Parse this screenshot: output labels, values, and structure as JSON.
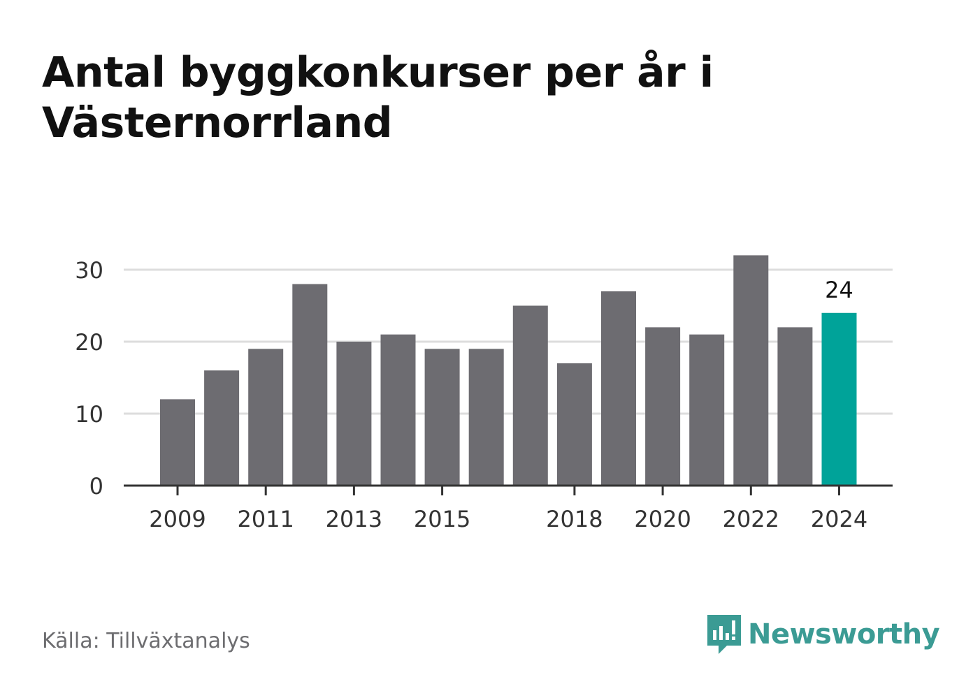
{
  "title": "Antal byggkonkurser per år i Västernorrland",
  "source": "Källa: Tillväxtanalys",
  "brand": {
    "name": "Newsworthy",
    "logo_icon": "newsworthy-logo-icon",
    "color": "#3b9b94"
  },
  "colors": {
    "bar": "#6d6c71",
    "highlight": "#00a399",
    "grid": "#dddddd",
    "axis": "#333333",
    "tick_text": "#333333",
    "label_text": "#111111"
  },
  "chart_data": {
    "type": "bar",
    "categories": [
      "2009",
      "2010",
      "2011",
      "2012",
      "2013",
      "2014",
      "2015",
      "2016",
      "2017",
      "2018",
      "2019",
      "2020",
      "2021",
      "2022",
      "2023",
      "2024"
    ],
    "values": [
      12,
      16,
      19,
      28,
      20,
      21,
      19,
      19,
      25,
      17,
      27,
      22,
      21,
      32,
      22,
      24
    ],
    "highlight_index": 15,
    "data_labels": [
      {
        "category": "2024",
        "text": "24"
      }
    ],
    "x_tick_labels": [
      {
        "x": 2009,
        "label": "2009"
      },
      {
        "x": 2011,
        "label": "2011"
      },
      {
        "x": 2013,
        "label": "2013"
      },
      {
        "x": 2015,
        "label": "2015"
      },
      {
        "x": 2018,
        "label": "2018"
      },
      {
        "x": 2020,
        "label": "2020"
      },
      {
        "x": 2022,
        "label": "2022"
      },
      {
        "x": 2024,
        "label": "2024"
      }
    ],
    "y_ticks": [
      0,
      10,
      20,
      30
    ],
    "ylim": [
      0,
      30
    ],
    "grid": true,
    "xlabel": "",
    "ylabel": ""
  }
}
